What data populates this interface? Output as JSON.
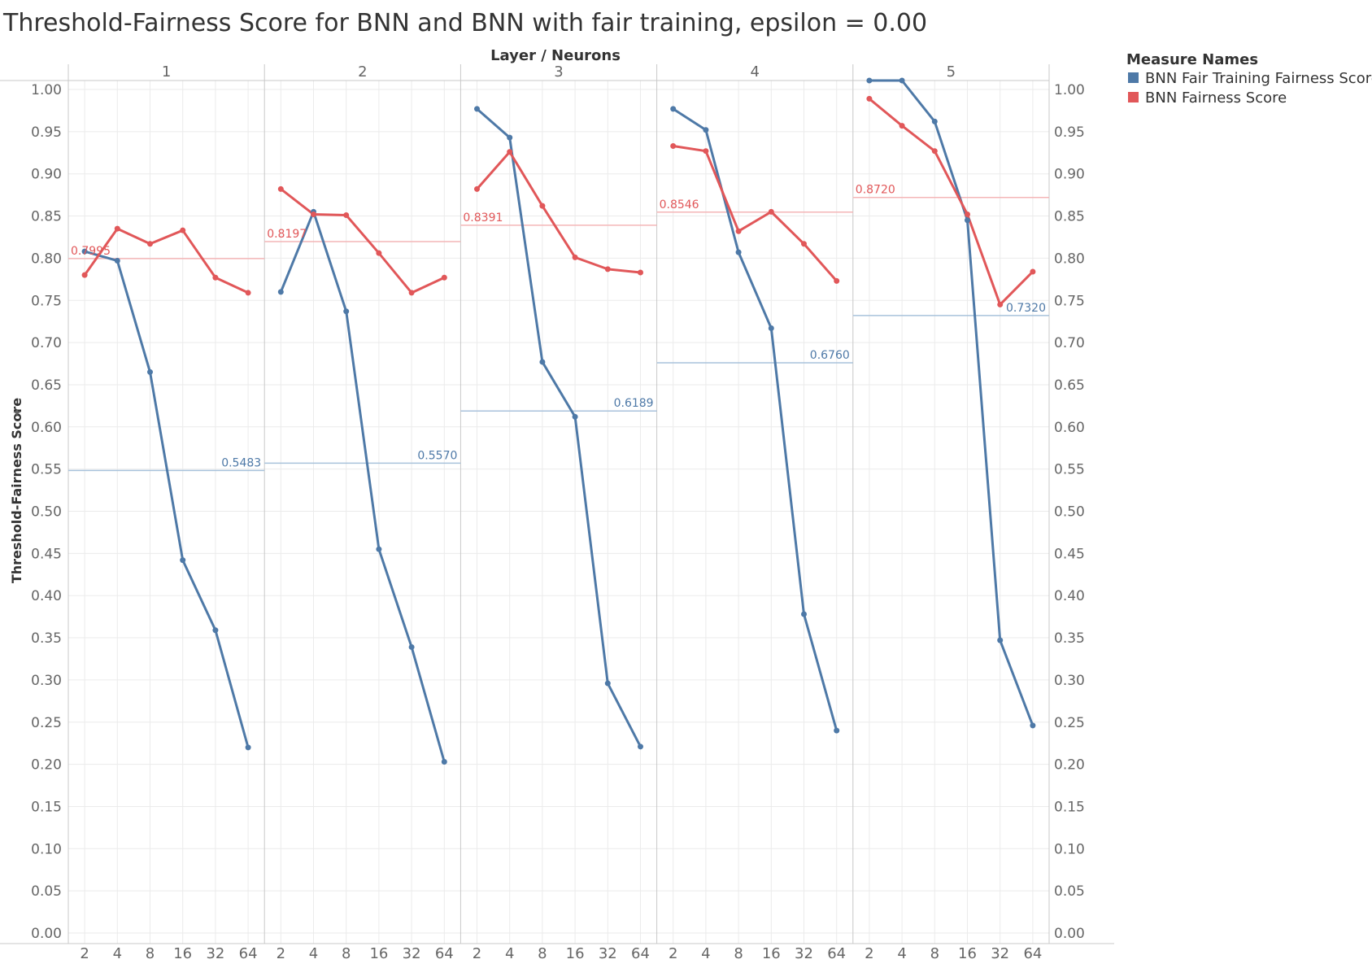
{
  "colors": {
    "fair_training": "#4e79a7",
    "fairness": "#e15759",
    "fair_training_ref": "#a8c2db",
    "fairness_ref": "#f4b6b7",
    "tick_text": "#666666",
    "title_text": "#333333",
    "grid": "#ebebeb",
    "axis": "#c8c8c8"
  },
  "chart_data": {
    "type": "line",
    "title": "Threshold-Fairness Score for BNN and BNN with fair training, epsilon = 0.00",
    "column_header": "Layer  /  Neurons",
    "ylabel": "Threshold-Fairness Score",
    "ylim": [
      0,
      1
    ],
    "yticks": [
      "0.00",
      "0.05",
      "0.10",
      "0.15",
      "0.20",
      "0.25",
      "0.30",
      "0.35",
      "0.40",
      "0.45",
      "0.50",
      "0.55",
      "0.60",
      "0.65",
      "0.70",
      "0.75",
      "0.80",
      "0.85",
      "0.90",
      "0.95",
      "1.00"
    ],
    "categories": [
      "2",
      "4",
      "8",
      "16",
      "32",
      "64"
    ],
    "legend": {
      "title": "Measure Names",
      "position": "top-right",
      "items": [
        "BNN Fair Training Fairness Score",
        "BNN Fairness Score"
      ]
    },
    "panels": [
      {
        "layer": "1",
        "series": [
          {
            "name": "BNN Fair Training Fairness Score",
            "values": [
              0.808,
              0.797,
              0.665,
              0.442,
              0.359,
              0.22
            ]
          },
          {
            "name": "BNN Fairness Score",
            "values": [
              0.78,
              0.835,
              0.817,
              0.833,
              0.777,
              0.759
            ]
          }
        ],
        "reference": {
          "fair_training": "0.5483",
          "fairness": "0.7995"
        }
      },
      {
        "layer": "2",
        "series": [
          {
            "name": "BNN Fair Training Fairness Score",
            "values": [
              0.76,
              0.855,
              0.737,
              0.455,
              0.339,
              0.203
            ]
          },
          {
            "name": "BNN Fairness Score",
            "values": [
              0.882,
              0.852,
              0.851,
              0.806,
              0.759,
              0.777
            ]
          }
        ],
        "reference": {
          "fair_training": "0.5570",
          "fairness": "0.8197"
        }
      },
      {
        "layer": "3",
        "series": [
          {
            "name": "BNN Fair Training Fairness Score",
            "values": [
              0.977,
              0.943,
              0.677,
              0.612,
              0.296,
              0.221
            ]
          },
          {
            "name": "BNN Fairness Score",
            "values": [
              0.882,
              0.926,
              0.862,
              0.801,
              0.787,
              0.783
            ]
          }
        ],
        "reference": {
          "fair_training": "0.6189",
          "fairness": "0.8391"
        }
      },
      {
        "layer": "4",
        "series": [
          {
            "name": "BNN Fair Training Fairness Score",
            "values": [
              0.977,
              0.952,
              0.807,
              0.717,
              0.378,
              0.24
            ]
          },
          {
            "name": "BNN Fairness Score",
            "values": [
              0.933,
              0.927,
              0.832,
              0.855,
              0.817,
              0.773
            ]
          }
        ],
        "reference": {
          "fair_training": "0.6760",
          "fairness": "0.8546"
        }
      },
      {
        "layer": "5",
        "series": [
          {
            "name": "BNN Fair Training Fairness Score",
            "values": [
              1.012,
              1.012,
              0.962,
              0.845,
              0.347,
              0.246
            ]
          },
          {
            "name": "BNN Fairness Score",
            "values": [
              0.989,
              0.957,
              0.927,
              0.852,
              0.745,
              0.784
            ]
          }
        ],
        "reference": {
          "fair_training": "0.7320",
          "fairness": "0.8720"
        }
      }
    ]
  }
}
